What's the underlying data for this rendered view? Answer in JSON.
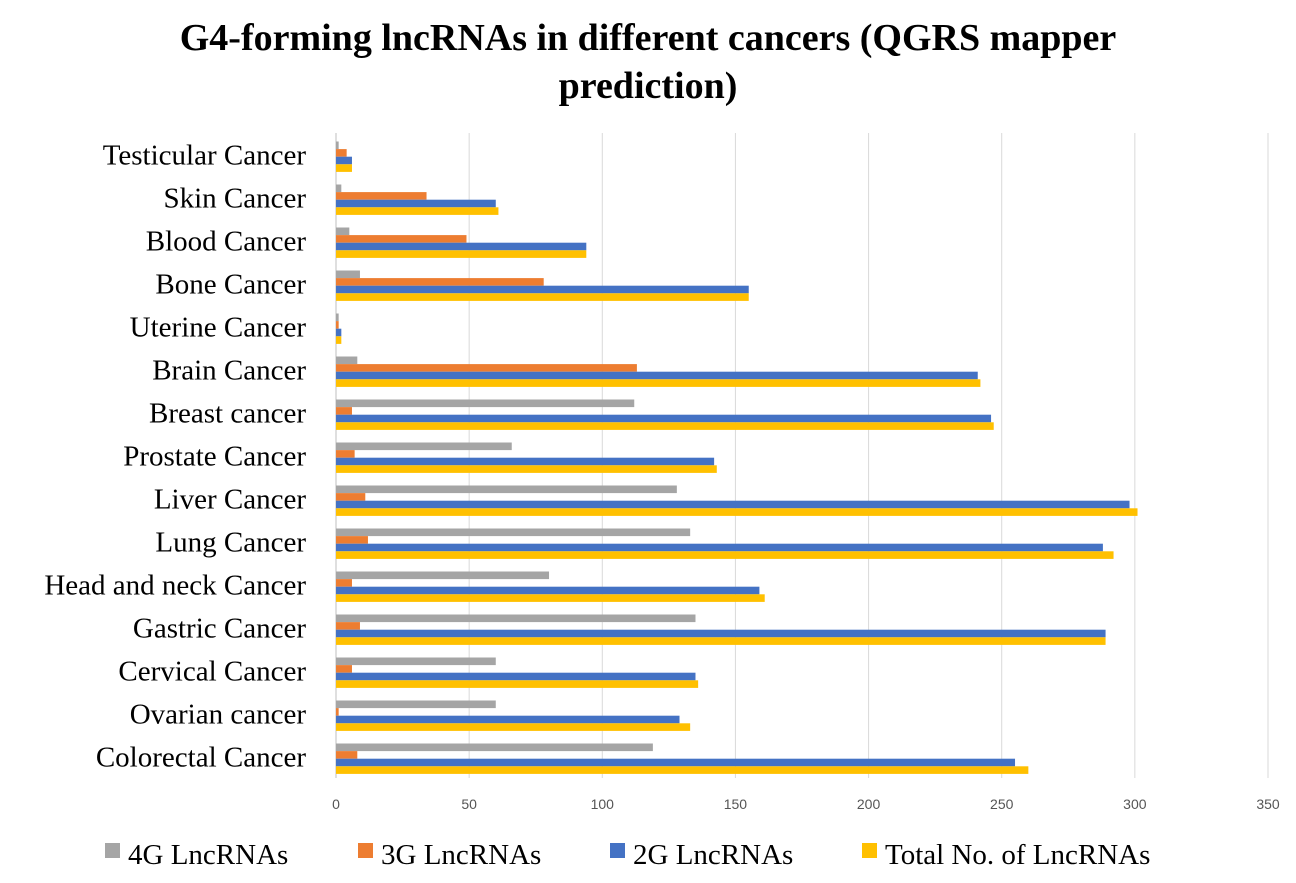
{
  "chart_data": {
    "type": "bar",
    "orientation": "horizontal",
    "title": "G4-forming lncRNAs in different cancers (QGRS mapper prediction)",
    "title_lines": [
      "G4-forming lncRNAs in different cancers (QGRS mapper",
      "prediction)"
    ],
    "xlabel": "",
    "ylabel": "",
    "xlim": [
      0,
      350
    ],
    "xticks": [
      0,
      50,
      100,
      150,
      200,
      250,
      300,
      350
    ],
    "grid": true,
    "legend_position": "bottom",
    "categories": [
      "Testicular Cancer",
      "Skin Cancer",
      "Blood Cancer",
      "Bone Cancer",
      "Uterine Cancer",
      "Brain Cancer",
      "Breast cancer",
      "Prostate Cancer",
      "Liver Cancer",
      "Lung Cancer",
      "Head and neck Cancer",
      "Gastric Cancer",
      "Cervical Cancer",
      "Ovarian cancer",
      "Colorectal Cancer"
    ],
    "series": [
      {
        "name": "4G LncRNAs",
        "color": "#A5A5A5",
        "values": [
          1,
          2,
          5,
          9,
          1,
          8,
          112,
          66,
          128,
          133,
          80,
          135,
          60,
          60,
          119
        ]
      },
      {
        "name": "3G LncRNAs",
        "color": "#ED7D31",
        "values": [
          4,
          34,
          49,
          78,
          1,
          113,
          6,
          7,
          11,
          12,
          6,
          9,
          6,
          1,
          8
        ]
      },
      {
        "name": "2G LncRNAs",
        "color": "#4472C4",
        "values": [
          6,
          60,
          94,
          155,
          2,
          241,
          246,
          142,
          298,
          288,
          159,
          289,
          135,
          129,
          255
        ]
      },
      {
        "name": "Total No. of LncRNAs",
        "color": "#FFC000",
        "values": [
          6,
          61,
          94,
          155,
          2,
          242,
          247,
          143,
          301,
          292,
          161,
          289,
          136,
          133,
          260
        ]
      }
    ]
  }
}
